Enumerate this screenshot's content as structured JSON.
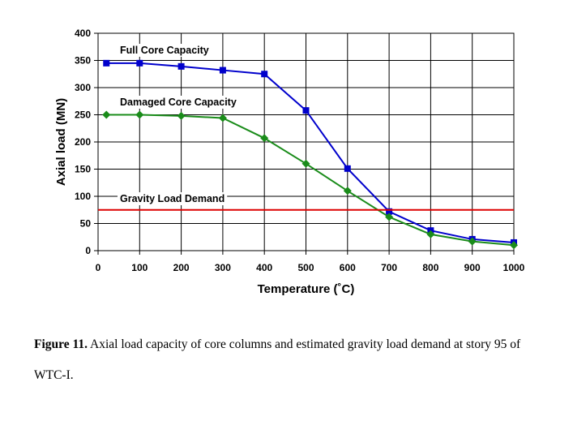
{
  "chart_data": {
    "type": "line",
    "title": "",
    "xlabel": "Temperature (˚C)",
    "ylabel": "Axial load (MN)",
    "xlim": [
      0,
      1000
    ],
    "ylim": [
      0,
      400
    ],
    "xticks": [
      0,
      100,
      200,
      300,
      400,
      500,
      600,
      700,
      800,
      900,
      1000
    ],
    "yticks": [
      0,
      50,
      100,
      150,
      200,
      250,
      300,
      350,
      400
    ],
    "grid": true,
    "legend": "none",
    "series": [
      {
        "name": "Full Core Capacity",
        "color": "#0000cc",
        "marker": "square",
        "x": [
          20,
          100,
          200,
          300,
          400,
          500,
          600,
          700,
          800,
          900,
          1000
        ],
        "y": [
          345,
          345,
          339,
          332,
          325,
          258,
          151,
          72,
          37,
          21,
          15
        ]
      },
      {
        "name": "Damaged Core Capacity",
        "color": "#1a8c1a",
        "marker": "diamond",
        "x": [
          20,
          100,
          200,
          300,
          400,
          500,
          600,
          700,
          800,
          900,
          1000
        ],
        "y": [
          250,
          250,
          248,
          244,
          207,
          160,
          110,
          62,
          30,
          17,
          10
        ]
      },
      {
        "name": "Gravity Load Demand",
        "color": "#dd0000",
        "marker": "none",
        "x": [
          0,
          1000
        ],
        "y": [
          75,
          75
        ]
      }
    ]
  },
  "caption": {
    "label": "Figure 11.",
    "text": " Axial load capacity of core columns and estimated gravity load demand at story 95 of WTC-I."
  }
}
